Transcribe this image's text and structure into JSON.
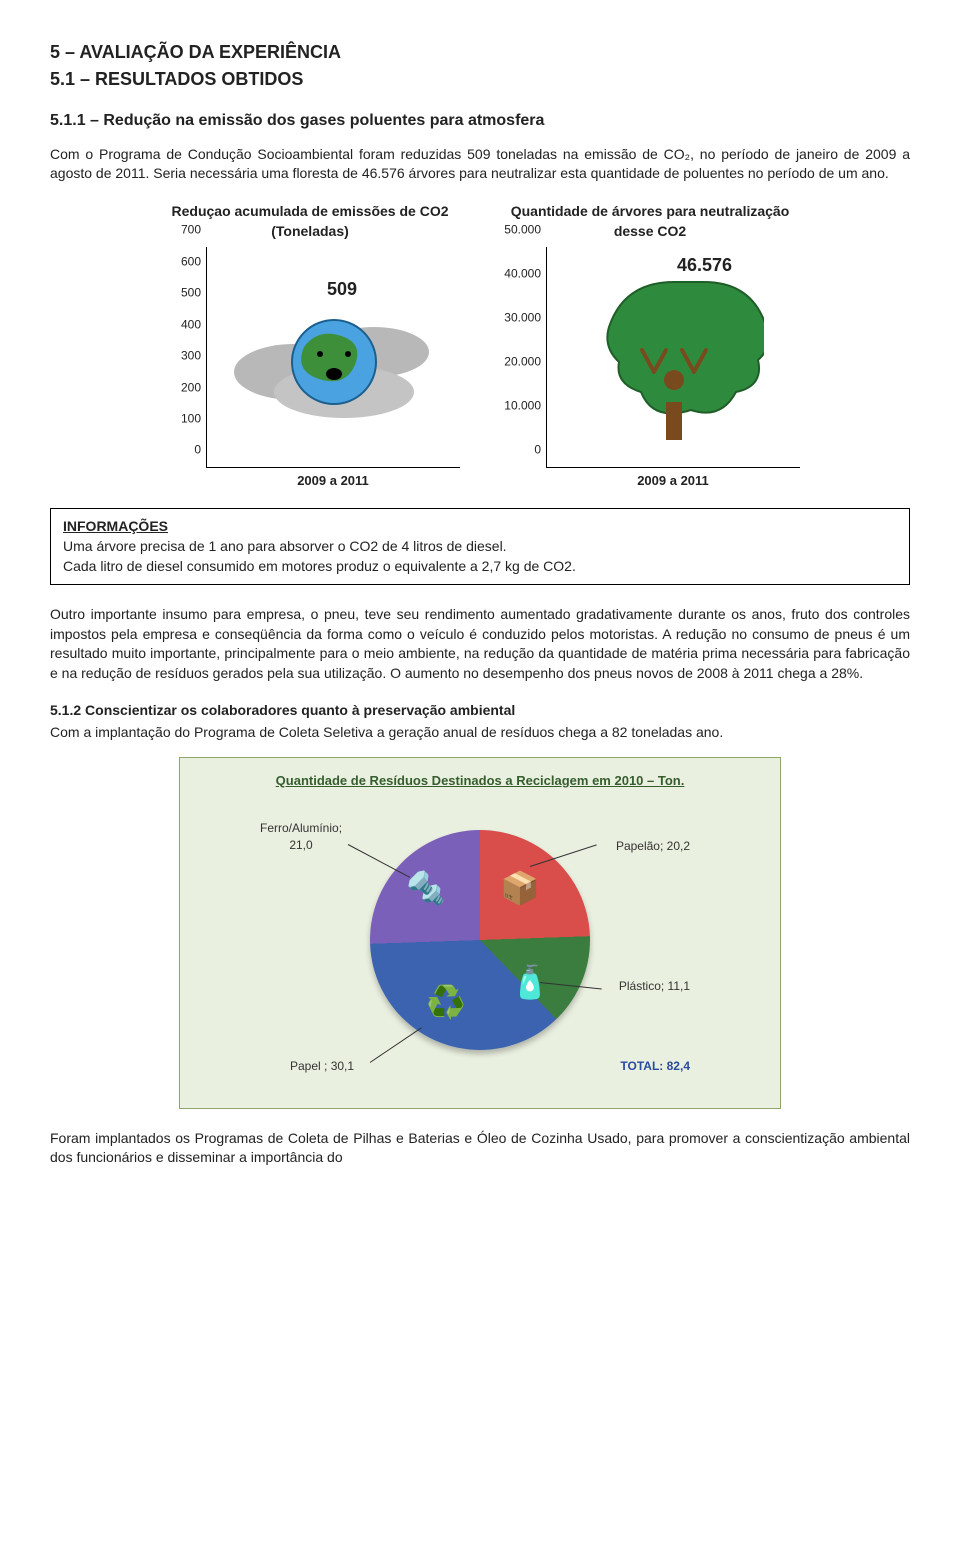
{
  "headings": {
    "h1": "5 – AVALIAÇÃO DA EXPERIÊNCIA",
    "h2": "5.1 – RESULTADOS OBTIDOS",
    "h3": "5.1.1 – Redução na emissão dos gases poluentes para atmosfera"
  },
  "para1": "Com o Programa de Condução Socioambiental foram reduzidas 509 toneladas na emissão de CO₂, no período de janeiro de 2009 a agosto de 2011. Seria necessária uma floresta de 46.576 árvores para neutralizar esta quantidade de poluentes no período de um ano.",
  "chart1": {
    "title": "Reduçao acumulada de emissões de CO2 (Toneladas)",
    "ylim": [
      0,
      700
    ],
    "ytick_step": 100,
    "value_label": "509",
    "xlabel": "2009 a 2011"
  },
  "chart2": {
    "title": "Quantidade de árvores para neutralização desse CO2",
    "ylim": [
      0,
      50000
    ],
    "yticks": [
      "0",
      "10.000",
      "20.000",
      "30.000",
      "40.000",
      "50.000"
    ],
    "value_label": "46.576",
    "xlabel": "2009 a 2011",
    "tree_color": "#2e8b3d",
    "trunk_color": "#7a4a1f"
  },
  "info_box": {
    "heading": "INFORMAÇÕES",
    "line1": "Uma árvore precisa de 1 ano para absorver o CO2 de 4 litros de diesel.",
    "line2": "Cada litro de diesel consumido em motores produz o equivalente a 2,7 kg de CO2."
  },
  "para2": "Outro importante insumo para empresa, o pneu, teve seu rendimento aumentado gradativamente durante os anos, fruto dos controles impostos pela empresa e conseqüência da forma como o veículo é conduzido pelos motoristas. A redução no consumo de pneus é um resultado muito importante, principalmente para o meio ambiente, na redução da quantidade de matéria prima necessária para fabricação e na redução de resíduos gerados pela sua utilização. O aumento no desempenho dos pneus novos de 2008 à 2011 chega a 28%.",
  "section512": {
    "heading": "5.1.2   Conscientizar os colaboradores quanto à preservação ambiental",
    "para": "Com a implantação do Programa de Coleta Seletiva a geração anual de resíduos chega a 82 toneladas ano."
  },
  "recycle": {
    "title": "Quantidade de Resíduos Destinados a Reciclagem em 2010 – Ton.",
    "colors": {
      "c1": "#d94d4a",
      "c2": "#3a7d3e",
      "c3": "#3b63b0",
      "c4": "#7a60b8"
    },
    "labels": {
      "ferro": "Ferro/Alumínio; 21,0",
      "papelao": "Papelão; 20,2",
      "plastico": "Plástico; 11,1",
      "papel": "Papel ; 30,1",
      "total": "TOTAL: 82,4"
    }
  },
  "para3": "Foram implantados os Programas de Coleta de Pilhas e Baterias e Óleo de Cozinha Usado, para promover a conscientização ambiental dos funcionários e disseminar a importância do"
}
